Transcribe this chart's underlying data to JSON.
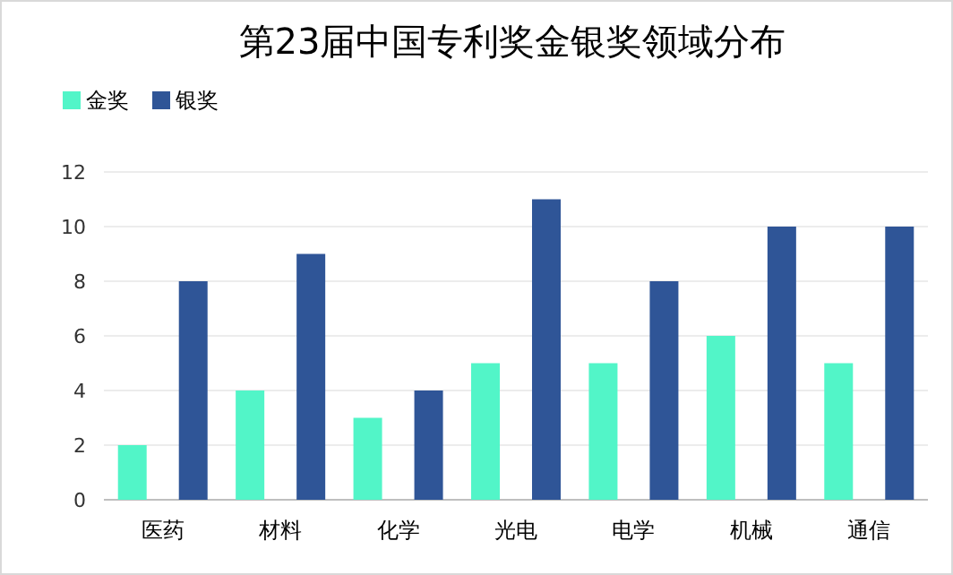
{
  "chart_data": {
    "type": "bar",
    "title": "第23届中国专利奖金银奖领域分布",
    "categories": [
      "医药",
      "材料",
      "化学",
      "光电",
      "电学",
      "机械",
      "通信"
    ],
    "series": [
      {
        "name": "金奖",
        "color": "#52f5c8",
        "values": [
          2,
          4,
          3,
          5,
          5,
          6,
          5
        ]
      },
      {
        "name": "银奖",
        "color": "#2f5597",
        "values": [
          8,
          9,
          4,
          11,
          8,
          10,
          10
        ]
      }
    ],
    "ylim": [
      0,
      12
    ],
    "yticks": [
      0,
      2,
      4,
      6,
      8,
      10,
      12
    ],
    "grid": "y",
    "legend": "top left"
  }
}
